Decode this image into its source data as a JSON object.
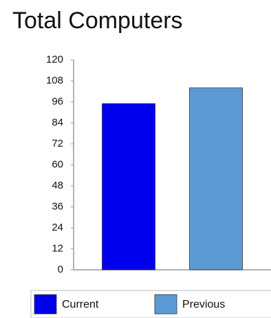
{
  "chart_data": {
    "type": "bar",
    "title": "Total Computers",
    "categories": [
      null
    ],
    "series": [
      {
        "name": "Current",
        "color": "#0000ee",
        "values": [
          95
        ]
      },
      {
        "name": "Previous",
        "color": "#5b9bd5",
        "values": [
          104
        ]
      }
    ],
    "ylim": [
      0,
      120
    ],
    "yticks": [
      0,
      12,
      24,
      36,
      48,
      60,
      72,
      84,
      96,
      108,
      120
    ],
    "grid": false,
    "legend": "bottom"
  }
}
